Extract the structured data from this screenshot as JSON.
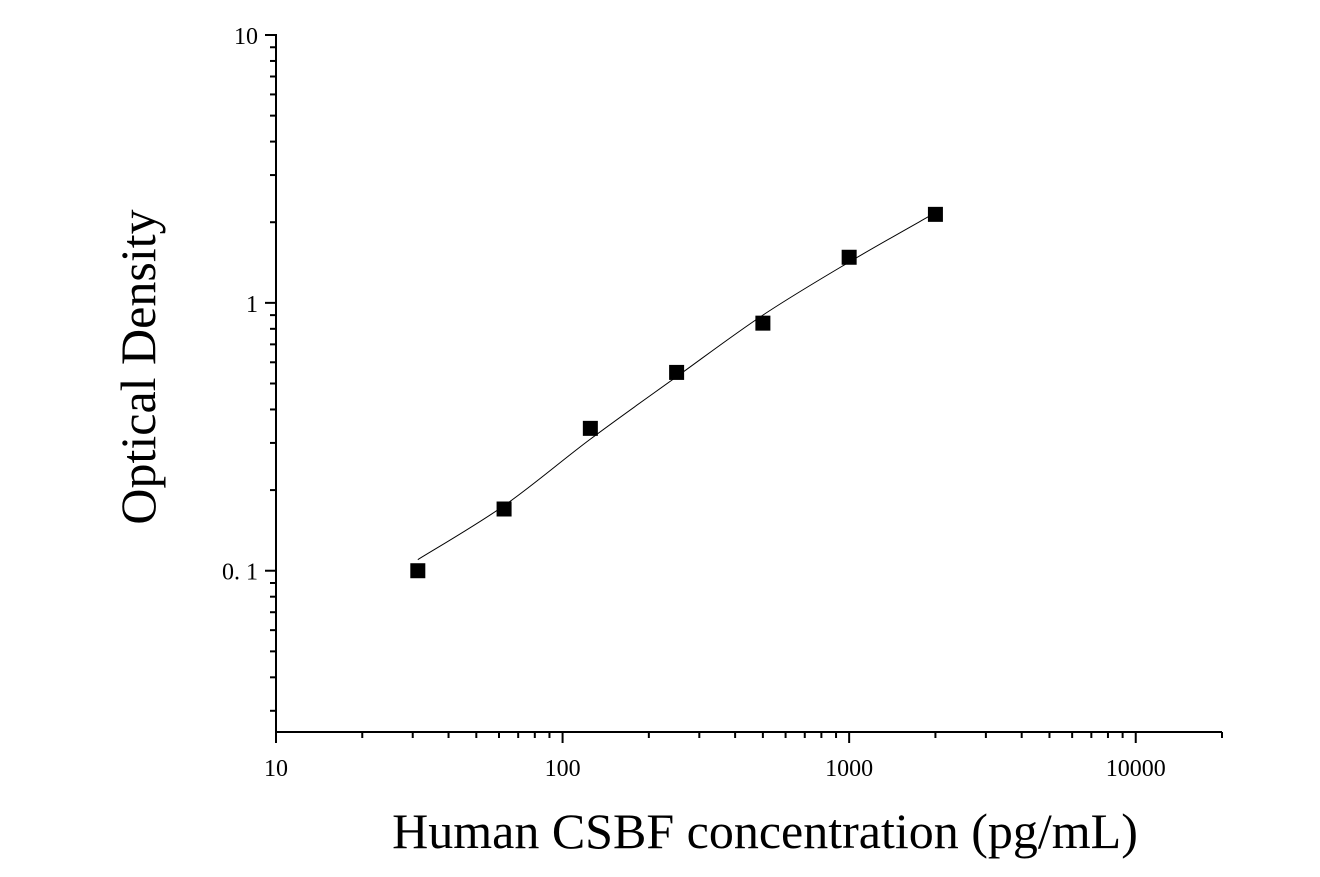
{
  "chart_data": {
    "type": "scatter",
    "title": "",
    "xlabel": "Human CSBF concentration (pg/mL)",
    "ylabel": "Optical Density",
    "x_scale": "log",
    "y_scale": "log",
    "xlim": [
      10,
      20000
    ],
    "ylim": [
      0.025,
      10
    ],
    "x_ticks": [
      {
        "value": 10,
        "label": "10"
      },
      {
        "value": 100,
        "label": "100"
      },
      {
        "value": 1000,
        "label": "1000"
      },
      {
        "value": 10000,
        "label": "10000"
      }
    ],
    "y_ticks": [
      {
        "value": 0.1,
        "label": "0. 1"
      },
      {
        "value": 1,
        "label": "1"
      },
      {
        "value": 10,
        "label": "10"
      }
    ],
    "grid": false,
    "legend": "none",
    "series": [
      {
        "marker": "square",
        "color": "#000000",
        "x": [
          31.25,
          62.5,
          125,
          250,
          500,
          1000,
          2000
        ],
        "y": [
          0.1,
          0.17,
          0.34,
          0.55,
          0.84,
          1.48,
          2.14
        ]
      }
    ],
    "fit_curve": {
      "color": "#000000",
      "x": [
        31.25,
        62.5,
        125,
        250,
        500,
        1000,
        2000
      ],
      "y": [
        0.11,
        0.175,
        0.31,
        0.53,
        0.9,
        1.42,
        2.17
      ]
    }
  }
}
